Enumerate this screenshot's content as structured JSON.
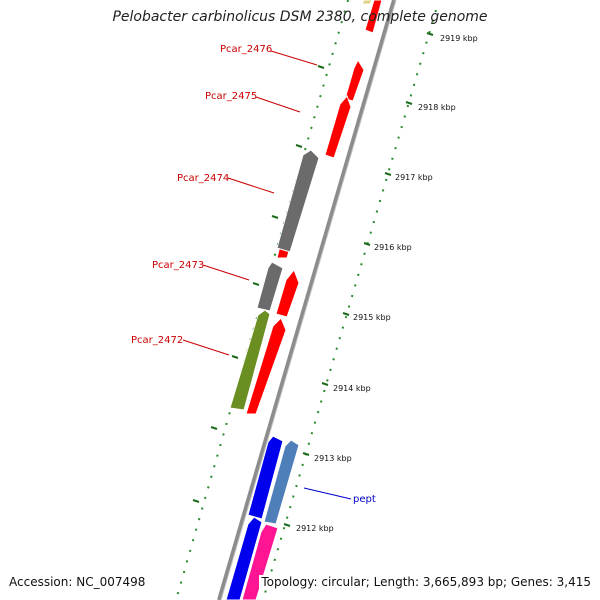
{
  "title": "Pelobacter carbinolicus DSM 2380, complete genome",
  "footer": {
    "accession": "Accession: NC_007498",
    "summary": "Topology: circular; Length: 3,665,893 bp; Genes: 3,415"
  },
  "colors": {
    "backbone": "#8c8c8c",
    "tick_major": "#1a6b1a",
    "tick_minor": "#2a8a2a",
    "label_red": "#cc0000",
    "label_blue": "#0000cc"
  },
  "kbp_ticks": [
    {
      "label": "2919 kbp",
      "kbp": 2919
    },
    {
      "label": "2918 kbp",
      "kbp": 2918
    },
    {
      "label": "2917 kbp",
      "kbp": 2917
    },
    {
      "label": "2916 kbp",
      "kbp": 2916
    },
    {
      "label": "2915 kbp",
      "kbp": 2915
    },
    {
      "label": "2914 kbp",
      "kbp": 2914
    },
    {
      "label": "2913 kbp",
      "kbp": 2913
    },
    {
      "label": "2912 kbp",
      "kbp": 2912
    }
  ],
  "gene_labels": [
    {
      "text": "Pcar_2476",
      "color": "#cc0000"
    },
    {
      "text": "Pcar_2475",
      "color": "#cc0000"
    },
    {
      "text": "Pcar_2474",
      "color": "#cc0000"
    },
    {
      "text": "Pcar_2473",
      "color": "#cc0000"
    },
    {
      "text": "Pcar_2472",
      "color": "#cc0000"
    },
    {
      "text": "pept",
      "color": "#0000cc"
    }
  ]
}
